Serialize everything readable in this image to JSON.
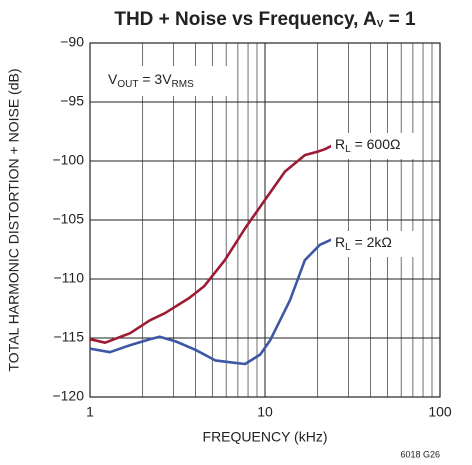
{
  "chart_data": {
    "type": "line",
    "title": [
      "THD + Noise vs Frequency, A",
      "V",
      " = 1"
    ],
    "x_label": "FREQUENCY (kHz)",
    "y_label": "TOTAL HARMONIC DISTORTION + NOISE (dB)",
    "annotations": [
      [
        "V",
        "OUT",
        " = 3V",
        "RMS"
      ]
    ],
    "footnote": "6018 G26",
    "log_x": true,
    "grid": true,
    "xlim": [
      1,
      100
    ],
    "xticks": [
      1,
      10,
      100
    ],
    "xminor_ticks": [
      2,
      3,
      4,
      5,
      6,
      7,
      8,
      9,
      20,
      30,
      40,
      50,
      60,
      70,
      80,
      90
    ],
    "ylim": [
      -120,
      -90
    ],
    "yticks": [
      {
        "value": -90,
        "label": "−90"
      },
      {
        "value": -95,
        "label": "−95"
      },
      {
        "value": -100,
        "label": "−100"
      },
      {
        "value": -105,
        "label": "−105"
      },
      {
        "value": -110,
        "label": "−110"
      },
      {
        "value": -115,
        "label": "−115"
      },
      {
        "value": -120,
        "label": "−120"
      }
    ],
    "series": [
      {
        "name": [
          "R",
          "L",
          " = 600Ω"
        ],
        "color": "#9e1b34",
        "x": [
          1,
          1.22,
          1.69,
          2.2,
          2.68,
          3.7,
          4.5,
          5.9,
          7.7,
          10,
          13,
          16.9,
          20,
          22,
          30
        ],
        "values": [
          -115.1,
          -115.4,
          -114.6,
          -113.5,
          -112.9,
          -111.6,
          -110.6,
          -108.4,
          -105.7,
          -103.3,
          -100.9,
          -99.5,
          -99.2,
          -99.0,
          -98.0
        ]
      },
      {
        "name": [
          "R",
          "L",
          " = 2kΩ"
        ],
        "color": "#3d57a5",
        "x": [
          1,
          1.3,
          1.7,
          2.2,
          2.5,
          3.1,
          4,
          5.2,
          6.7,
          7.7,
          9.4,
          10.7,
          13.9,
          16.9,
          20.6,
          30
        ],
        "values": [
          -115.9,
          -116.2,
          -115.6,
          -115.1,
          -114.9,
          -115.3,
          -116.0,
          -116.9,
          -117.1,
          -117.2,
          -116.4,
          -115.2,
          -111.8,
          -108.4,
          -107.1,
          -106.0
        ]
      }
    ]
  }
}
